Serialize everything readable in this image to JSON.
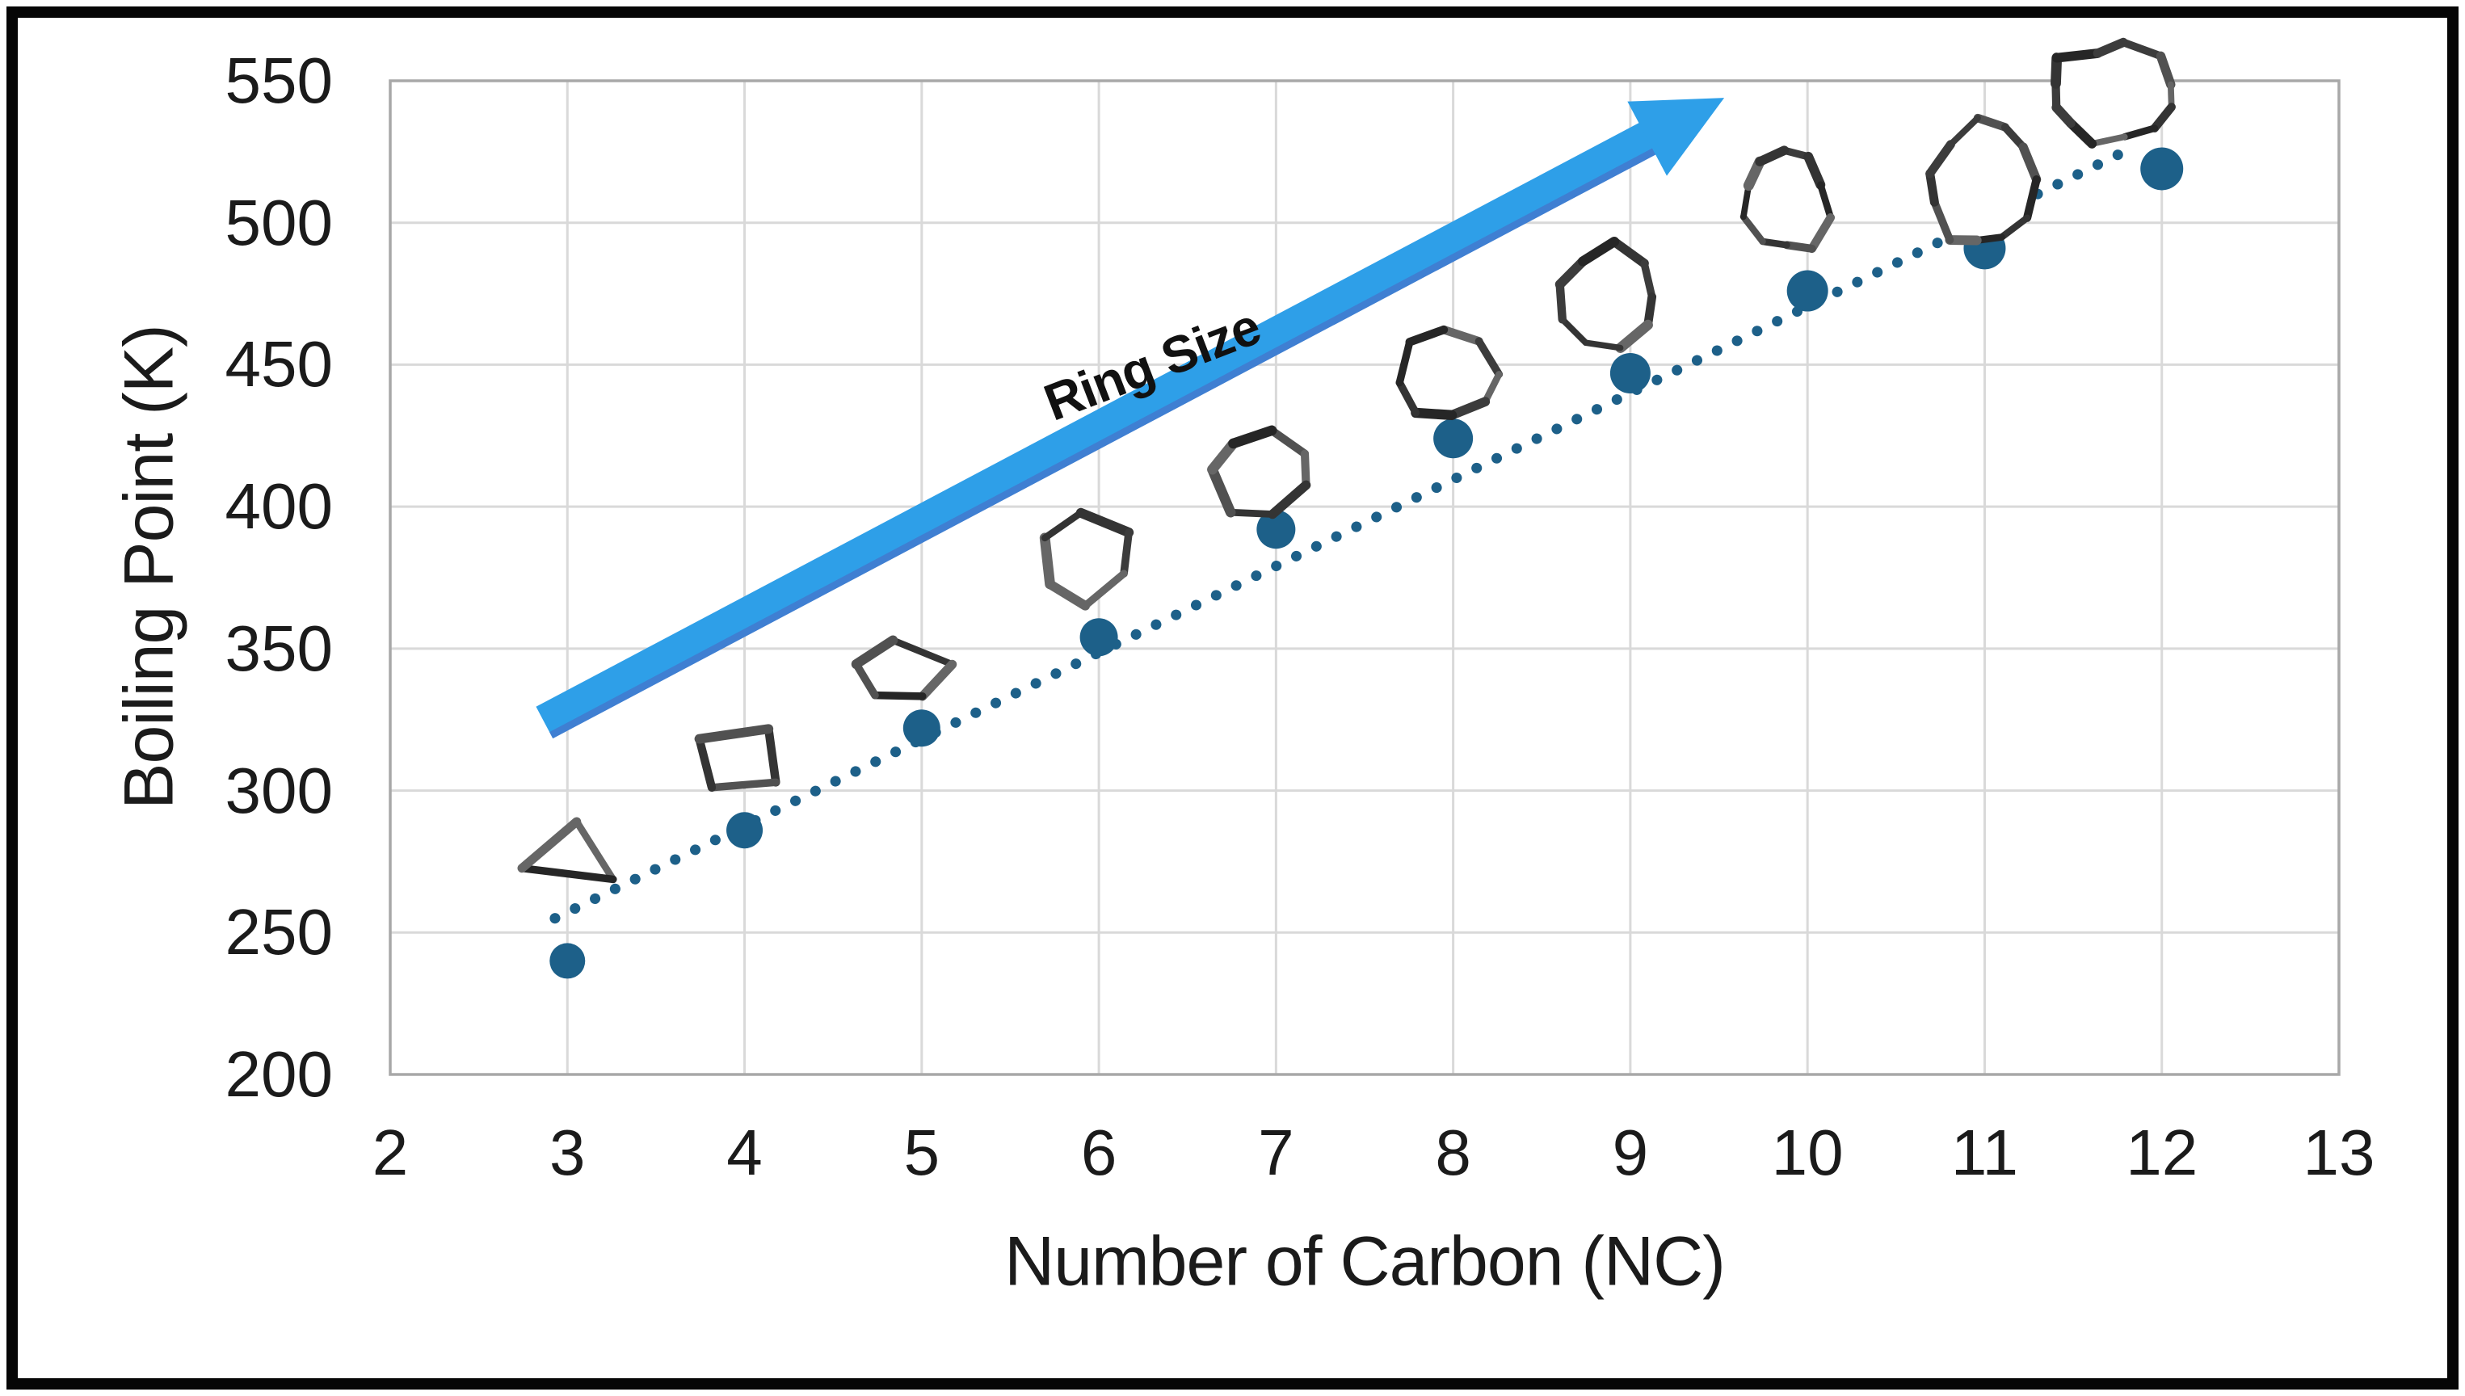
{
  "chart_data": {
    "type": "scatter",
    "title": "",
    "xlabel": "Number of Carbon (NC)",
    "ylabel": "Boiling Point (K)",
    "xlim": [
      2,
      13
    ],
    "ylim": [
      200,
      550
    ],
    "x_ticks": [
      2,
      3,
      4,
      5,
      6,
      7,
      8,
      9,
      10,
      11,
      12,
      13
    ],
    "y_ticks": [
      200,
      250,
      300,
      350,
      400,
      450,
      500,
      550
    ],
    "grid": true,
    "legend": "none",
    "series": [
      {
        "marker": "circle",
        "color": "#1D6089",
        "x": [
          3,
          4,
          5,
          6,
          7,
          8,
          9,
          10,
          11,
          12
        ],
        "y": [
          240,
          286,
          322,
          354,
          392,
          424,
          447,
          476,
          491,
          519
        ]
      }
    ],
    "trendline": {
      "style": "dotted",
      "color": "#1D6089",
      "x": [
        2.93,
        11.82
      ],
      "y": [
        255,
        526
      ]
    },
    "annotations": {
      "arrow": {
        "label": "Ring Size",
        "color": "#2E9FE8",
        "edge_color": "#3F7FD2",
        "x_start": 2.87,
        "y_start": 324,
        "x_end": 9.53,
        "y_end": 544
      },
      "ring_label": {
        "text": "Ring Size",
        "x": 6.3,
        "y": 450,
        "angle_deg": -21
      },
      "rings": [
        {
          "sides": 3,
          "x": 3.01,
          "y": 276,
          "rx": 64,
          "sy": 0.74,
          "rot": -90
        },
        {
          "sides": 4,
          "x": 3.97,
          "y": 311,
          "rx": 60,
          "sy": 0.76,
          "rot": -49
        },
        {
          "sides": 5,
          "x": 4.88,
          "y": 342,
          "rx": 60,
          "sy": 0.66,
          "rot": -90
        },
        {
          "sides": 6,
          "x": 5.93,
          "y": 382,
          "rx": 55,
          "sy": 1.0,
          "rot": -90
        },
        {
          "sides": 7,
          "x": 6.91,
          "y": 412,
          "rx": 58,
          "sy": 0.93,
          "rot": -80
        },
        {
          "sides": 8,
          "x": 7.96,
          "y": 446,
          "rx": 62,
          "sy": 0.9,
          "rot": -95
        },
        {
          "sides": 9,
          "x": 8.88,
          "y": 474,
          "rx": 63,
          "sy": 0.95,
          "rot": -85
        },
        {
          "sides": 10,
          "x": 9.88,
          "y": 508,
          "rx": 53,
          "sy": 1.18,
          "rot": -90
        },
        {
          "sides": 11,
          "x": 10.99,
          "y": 513,
          "rx": 62,
          "sy": 1.3,
          "rot": -100
        },
        {
          "sides": 12,
          "x": 11.71,
          "y": 545,
          "rx": 76,
          "sy": 0.78,
          "rot": -75
        }
      ]
    },
    "colors": {
      "marker": "#1D6089",
      "trend_dots": "#1D6089",
      "arrow": "#2E9FE8",
      "arrow_edge": "#3F7FD2",
      "gridline": "#D9D9D9",
      "plot_border": "#A8A8A8",
      "ring_stroke": "#3C3C3C",
      "text": "#1B1B1B",
      "frame": "#060606",
      "background": "#FFFFFF"
    }
  }
}
